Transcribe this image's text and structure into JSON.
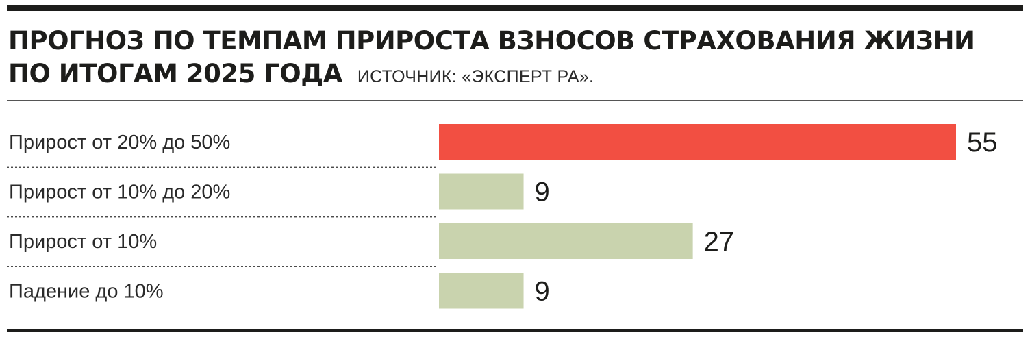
{
  "header": {
    "title_line1": "ПРОГНОЗ ПО ТЕМПАМ ПРИРОСТА ВЗНОСОВ СТРАХОВАНИЯ ЖИЗНИ",
    "title_line2": "ПО ИТОГАМ 2025 ГОДА",
    "source": "ИСТОЧНИК: «ЭКСПЕРТ РА»."
  },
  "chart_data": {
    "type": "bar",
    "orientation": "horizontal",
    "title": "ПРОГНОЗ ПО ТЕМПАМ ПРИРОСТА ВЗНОСОВ СТРАХОВАНИЯ ЖИЗНИ ПО ИТОГАМ 2025 ГОДА",
    "categories": [
      "Прирост от 20% до 50%",
      "Прирост от 10% до 20%",
      "Прирост от 10%",
      "Падение до 10%"
    ],
    "values": [
      55,
      9,
      27,
      9
    ],
    "value_labels": [
      "55",
      "9",
      "27",
      "9"
    ],
    "xlim": [
      0,
      55
    ],
    "grid": false,
    "legend": "none",
    "colors": {
      "highlight": "#f24f42",
      "default": "#c9d3ae"
    },
    "highlight_index": 0
  }
}
